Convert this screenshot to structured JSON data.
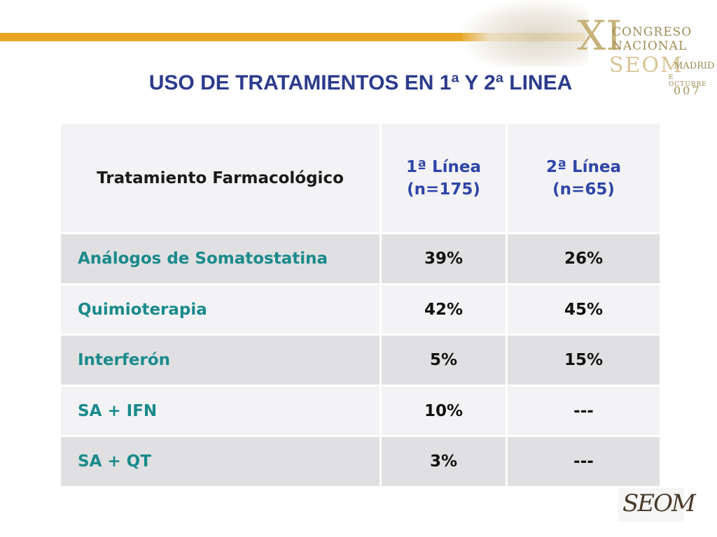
{
  "title": "USO DE TRATAMIENTOS EN 1ª Y 2ª LINEA",
  "logo": {
    "numeral": "XI",
    "line1": "CONGRESO",
    "line2": "NACIONAL",
    "org": "SEOM",
    "city": "MADRID",
    "month": "E OCTUBRE",
    "year": "007"
  },
  "footer_logo": "SEOM",
  "colors": {
    "accent_bar": "#e9a521",
    "title": "#2c3b8c",
    "row_label": "#1a8a8c",
    "column_header": "#2f45a7"
  },
  "table": {
    "headers": {
      "treatment": "Tratamiento Farmacológico",
      "first_line": "1ª Línea",
      "first_line_n": "(n=175)",
      "second_line": "2ª Línea",
      "second_line_n": "(n=65)"
    },
    "rows": [
      {
        "name": "Análogos de Somatostatina",
        "first": "39%",
        "second": "26%"
      },
      {
        "name": "Quimioterapia",
        "first": "42%",
        "second": "45%"
      },
      {
        "name": "Interferón",
        "first": "5%",
        "second": "15%"
      },
      {
        "name": "SA + IFN",
        "first": "10%",
        "second": "---"
      },
      {
        "name": "SA + QT",
        "first": "3%",
        "second": "---"
      }
    ]
  }
}
